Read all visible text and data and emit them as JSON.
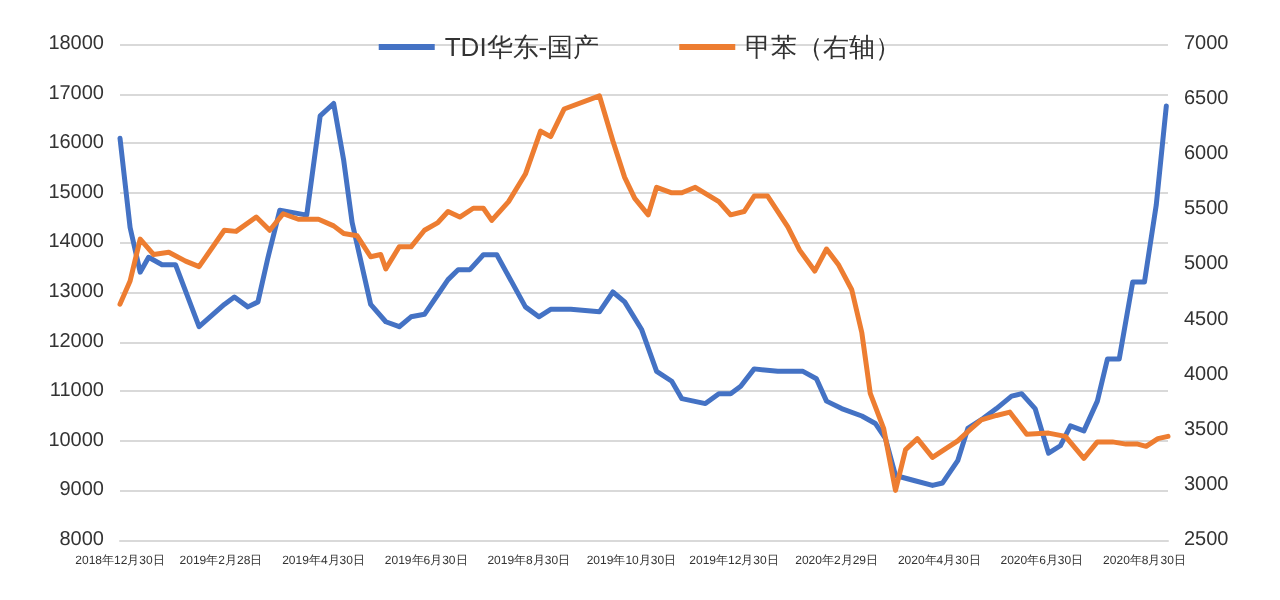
{
  "chart_data": {
    "type": "line",
    "xlim": [
      "2018-12-30",
      "2020-09-13"
    ],
    "xticks": [
      {
        "value": "2018-12-30",
        "label": "2018年12月30日"
      },
      {
        "value": "2019-02-28",
        "label": "2019年2月28日"
      },
      {
        "value": "2019-04-30",
        "label": "2019年4月30日"
      },
      {
        "value": "2019-06-30",
        "label": "2019年6月30日"
      },
      {
        "value": "2019-08-30",
        "label": "2019年8月30日"
      },
      {
        "value": "2019-10-30",
        "label": "2019年10月30日"
      },
      {
        "value": "2019-12-30",
        "label": "2019年12月30日"
      },
      {
        "value": "2020-02-29",
        "label": "2020年2月29日"
      },
      {
        "value": "2020-04-30",
        "label": "2020年4月30日"
      },
      {
        "value": "2020-06-30",
        "label": "2020年6月30日"
      },
      {
        "value": "2020-08-30",
        "label": "2020年8月30日"
      }
    ],
    "ylim": [
      8000,
      18000
    ],
    "yticks": [
      8000,
      9000,
      10000,
      11000,
      12000,
      13000,
      14000,
      15000,
      16000,
      17000,
      18000
    ],
    "y2lim": [
      2500,
      7000
    ],
    "y2ticks": [
      2500,
      3000,
      3500,
      4000,
      4500,
      5000,
      5500,
      6000,
      6500,
      7000
    ],
    "grid": "y",
    "legend": "top",
    "marker": "none",
    "line_style": "solid",
    "series": [
      {
        "name": "TDI华东-国产",
        "color": "#4472c4",
        "x": [
          "2018-12-30",
          "2019-01-05",
          "2019-01-11",
          "2019-01-16",
          "2019-01-24",
          "2019-02-01",
          "2019-02-15",
          "2019-03-02",
          "2019-03-08",
          "2019-03-16",
          "2019-03-22",
          "2019-03-28",
          "2019-04-04",
          "2019-04-20",
          "2019-04-28",
          "2019-05-06",
          "2019-05-12",
          "2019-05-17",
          "2019-05-28",
          "2019-06-06",
          "2019-06-14",
          "2019-06-21",
          "2019-06-29",
          "2019-07-07",
          "2019-07-13",
          "2019-07-19",
          "2019-07-26",
          "2019-08-03",
          "2019-08-11",
          "2019-08-28",
          "2019-09-05",
          "2019-09-12",
          "2019-09-24",
          "2019-10-11",
          "2019-10-19",
          "2019-10-26",
          "2019-11-05",
          "2019-11-14",
          "2019-11-23",
          "2019-11-29",
          "2019-12-13",
          "2019-12-21",
          "2019-12-28",
          "2020-01-03",
          "2020-01-11",
          "2020-01-25",
          "2020-02-09",
          "2020-02-17",
          "2020-02-23",
          "2020-03-03",
          "2020-03-15",
          "2020-03-23",
          "2020-03-29",
          "2020-04-04",
          "2020-04-15",
          "2020-04-26",
          "2020-05-02",
          "2020-05-11",
          "2020-05-17",
          "2020-05-26",
          "2020-06-03",
          "2020-06-12",
          "2020-06-18",
          "2020-06-26",
          "2020-07-04",
          "2020-07-11",
          "2020-07-17",
          "2020-07-25",
          "2020-08-02",
          "2020-08-08",
          "2020-08-15",
          "2020-08-23",
          "2020-08-30",
          "2020-09-06",
          "2020-09-12"
        ],
        "values": [
          16100,
          14300,
          13400,
          13700,
          13550,
          13550,
          12300,
          12750,
          12900,
          12700,
          12800,
          13700,
          14650,
          14550,
          16550,
          16800,
          15650,
          14400,
          12750,
          12400,
          12300,
          12500,
          12550,
          12950,
          13250,
          13450,
          13450,
          13750,
          13750,
          12700,
          12500,
          12650,
          12650,
          12600,
          13000,
          12800,
          12250,
          11400,
          11200,
          10850,
          10750,
          10950,
          10950,
          11100,
          11450,
          11400,
          11400,
          11250,
          10800,
          10650,
          10500,
          10350,
          10050,
          9300,
          9200,
          9100,
          9150,
          9600,
          10250,
          10450,
          10650,
          10900,
          10950,
          10650,
          9750,
          9900,
          10300,
          10200,
          10800,
          11650,
          11650,
          13200,
          13200,
          14750,
          16750
        ]
      },
      {
        "name": "甲苯（右轴）",
        "color": "#ed7d31",
        "axis": "y2",
        "x": [
          "2018-12-30",
          "2019-01-05",
          "2019-01-11",
          "2019-01-19",
          "2019-01-28",
          "2019-02-07",
          "2019-02-15",
          "2019-03-02",
          "2019-03-09",
          "2019-03-21",
          "2019-03-29",
          "2019-04-06",
          "2019-04-15",
          "2019-04-27",
          "2019-05-06",
          "2019-05-12",
          "2019-05-20",
          "2019-05-28",
          "2019-06-03",
          "2019-06-06",
          "2019-06-14",
          "2019-06-21",
          "2019-06-29",
          "2019-07-07",
          "2019-07-13",
          "2019-07-20",
          "2019-07-28",
          "2019-08-03",
          "2019-08-08",
          "2019-08-18",
          "2019-08-28",
          "2019-09-06",
          "2019-09-12",
          "2019-09-20",
          "2019-10-11",
          "2019-10-19",
          "2019-10-26",
          "2019-11-01",
          "2019-11-09",
          "2019-11-14",
          "2019-11-23",
          "2019-11-29",
          "2019-12-07",
          "2019-12-21",
          "2019-12-28",
          "2020-01-05",
          "2020-01-11",
          "2020-01-19",
          "2020-01-31",
          "2020-02-07",
          "2020-02-16",
          "2020-02-23",
          "2020-03-01",
          "2020-03-09",
          "2020-03-15",
          "2020-03-20",
          "2020-03-28",
          "2020-04-04",
          "2020-04-10",
          "2020-04-17",
          "2020-04-26",
          "2020-05-03",
          "2020-05-11",
          "2020-05-19",
          "2020-05-25",
          "2020-06-03",
          "2020-06-11",
          "2020-06-21",
          "2020-07-04",
          "2020-07-14",
          "2020-07-25",
          "2020-08-02",
          "2020-08-11",
          "2020-08-19",
          "2020-08-26",
          "2020-08-31",
          "2020-09-07",
          "2020-09-13"
        ],
        "values": [
          4640,
          4850,
          5230,
          5090,
          5110,
          5030,
          4980,
          5310,
          5300,
          5430,
          5310,
          5460,
          5410,
          5410,
          5350,
          5280,
          5260,
          5070,
          5090,
          4960,
          5160,
          5160,
          5310,
          5380,
          5480,
          5430,
          5510,
          5510,
          5400,
          5570,
          5820,
          6210,
          6160,
          6410,
          6530,
          6120,
          5790,
          5600,
          5450,
          5700,
          5650,
          5650,
          5700,
          5570,
          5450,
          5480,
          5620,
          5620,
          5340,
          5130,
          4940,
          5140,
          5000,
          4770,
          4380,
          3830,
          3510,
          2950,
          3320,
          3420,
          3250,
          3320,
          3400,
          3510,
          3590,
          3630,
          3660,
          3460,
          3470,
          3440,
          3240,
          3390,
          3390,
          3370,
          3370,
          3350,
          3420,
          3440
        ]
      }
    ]
  }
}
